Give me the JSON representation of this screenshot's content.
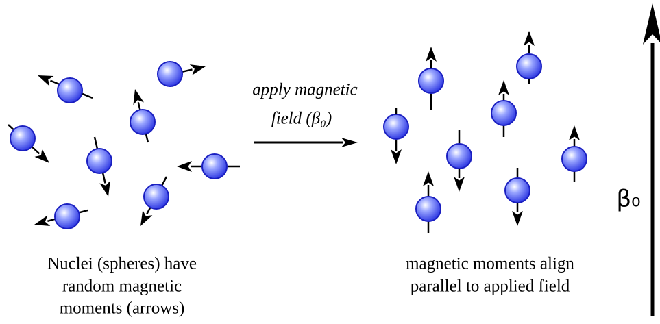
{
  "arrow_label": {
    "lines": [
      "apply magnetic",
      "field (β₀)"
    ]
  },
  "left_caption": {
    "lines": [
      "Nuclei (spheres) have",
      "random magnetic",
      "moments (arrows)"
    ]
  },
  "right_caption": {
    "lines": [
      "magnetic moments align",
      "parallel to applied field"
    ]
  },
  "field_label": "β₀"
}
